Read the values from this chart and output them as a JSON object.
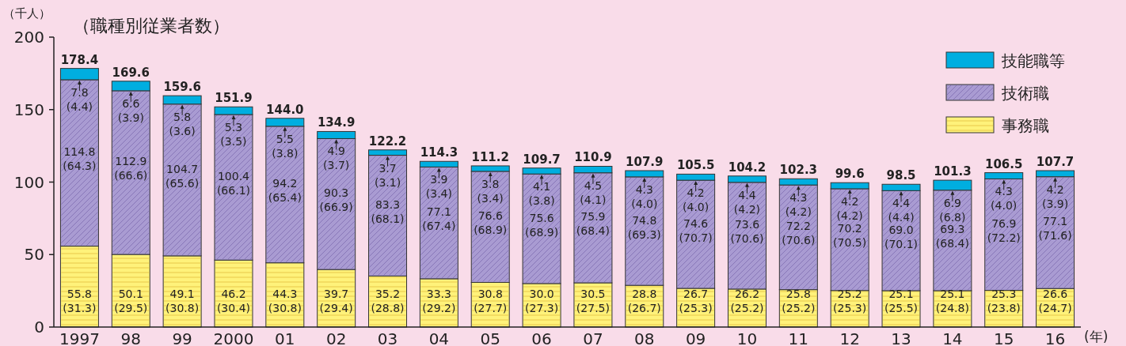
{
  "chart_data": {
    "type": "bar",
    "stacked": true,
    "title": "（職種別従業者数）",
    "ylabel": "（千人）",
    "xlabel": "(年)",
    "categories": [
      "1997",
      "98",
      "99",
      "2000",
      "01",
      "02",
      "03",
      "04",
      "05",
      "06",
      "07",
      "08",
      "09",
      "10",
      "11",
      "12",
      "13",
      "14",
      "15",
      "16"
    ],
    "ylim": [
      0,
      200
    ],
    "yticks": [
      0,
      50,
      100,
      150,
      200
    ],
    "legend": "top right",
    "grid": false,
    "series": [
      {
        "name": "事務職",
        "color": "#fff27a",
        "values": [
          55.8,
          50.1,
          49.1,
          46.2,
          44.3,
          39.7,
          35.2,
          33.3,
          30.8,
          30.0,
          30.5,
          28.8,
          26.7,
          26.2,
          25.8,
          25.2,
          25.1,
          25.1,
          25.3,
          26.6
        ],
        "value_labels": [
          "55.8\n(31.3)",
          "50.1\n(29.5)",
          "49.1\n(30.8)",
          "46.2\n(30.4)",
          "44.3\n(30.8)",
          "39.7\n(29.4)",
          "35.2\n(28.8)",
          "33.3\n(29.2)",
          "30.8\n(27.7)",
          "30.0\n(27.3)",
          "30.5\n(27.5)",
          "28.8\n(26.7)",
          "26.7\n(25.3)",
          "26.2\n(25.2)",
          "25.8\n(25.2)",
          "25.2\n(25.3)",
          "25.1\n(25.5)",
          "25.1\n(24.8)",
          "25.3\n(23.8)",
          "26.6\n(24.7)"
        ]
      },
      {
        "name": "技術職",
        "color": "#a99bd2",
        "values": [
          114.8,
          112.9,
          104.7,
          100.4,
          94.2,
          90.3,
          83.3,
          77.1,
          76.6,
          75.6,
          75.9,
          74.8,
          74.6,
          73.6,
          72.2,
          70.2,
          69.0,
          69.3,
          76.9,
          77.1
        ],
        "value_labels": [
          "114.8\n(64.3)",
          "112.9\n(66.6)",
          "104.7\n(65.6)",
          "100.4\n(66.1)",
          "94.2\n(65.4)",
          "90.3\n(66.9)",
          "83.3\n(68.1)",
          "77.1\n(67.4)",
          "76.6\n(68.9)",
          "75.6\n(68.9)",
          "75.9\n(68.4)",
          "74.8\n(69.3)",
          "74.6\n(70.7)",
          "73.6\n(70.6)",
          "72.2\n(70.6)",
          "70.2\n(70.5)",
          "69.0\n(70.1)",
          "69.3\n(68.4)",
          "76.9\n(72.2)",
          "77.1\n(71.6)"
        ]
      },
      {
        "name": "技能職等",
        "color": "#00aee0",
        "values": [
          7.8,
          6.6,
          5.8,
          5.3,
          5.5,
          4.9,
          3.7,
          3.9,
          3.8,
          4.1,
          4.5,
          4.3,
          4.2,
          4.4,
          4.3,
          4.2,
          4.4,
          6.9,
          4.3,
          4.2
        ],
        "value_labels": [
          "7.8\n(4.4)",
          "6.6\n(3.9)",
          "5.8\n(3.6)",
          "5.3\n(3.5)",
          "5.5\n(3.8)",
          "4.9\n(3.7)",
          "3.7\n(3.1)",
          "3.9\n(3.4)",
          "3.8\n(3.4)",
          "4.1\n(3.8)",
          "4.5\n(4.1)",
          "4.3\n(4.0)",
          "4.2\n(4.0)",
          "4.4\n(4.2)",
          "4.3\n(4.2)",
          "4.2\n(4.2)",
          "4.4\n(4.4)",
          "6.9\n(6.8)",
          "4.3\n(4.0)",
          "4.2\n(3.9)"
        ]
      }
    ],
    "totals": [
      "178.4",
      "169.6",
      "159.6",
      "151.9",
      "144.0",
      "134.9",
      "122.2",
      "114.3",
      "111.2",
      "109.7",
      "110.9",
      "107.9",
      "105.5",
      "104.2",
      "102.3",
      "99.6",
      "98.5",
      "101.3",
      "106.5",
      "107.7"
    ]
  }
}
